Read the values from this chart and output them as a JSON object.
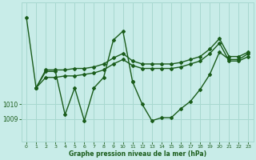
{
  "bg_color": "#c8ece8",
  "grid_color": "#a8d8d0",
  "line_color": "#1a5c1a",
  "marker_color": "#1a5c1a",
  "xlabel": "Graphe pression niveau de la mer (hPa)",
  "xlabel_color": "#1a5c1a",
  "tick_color": "#1a5c1a",
  "xlim": [
    -0.5,
    23.5
  ],
  "ylim": [
    1007.5,
    1016.8
  ],
  "yticks": [
    1009,
    1010
  ],
  "sA_x": [
    0,
    1,
    2,
    3,
    4,
    5,
    6,
    7,
    8,
    9,
    10,
    11
  ],
  "sA_y": [
    1015.8,
    1011.1,
    1012.2,
    1012.2,
    1009.3,
    1011.1,
    1008.9,
    1011.1,
    1011.8,
    1014.3,
    1014.9,
    1011.5
  ],
  "sB_x": [
    1,
    2,
    3,
    4,
    5,
    6,
    7,
    8,
    9,
    10,
    11,
    12,
    13,
    14,
    15,
    16,
    17,
    18,
    19,
    20,
    21,
    22,
    23
  ],
  "sB_y": [
    1011.1,
    1012.3,
    1012.3,
    1012.3,
    1012.4,
    1012.4,
    1012.5,
    1012.7,
    1013.1,
    1013.4,
    1012.9,
    1012.7,
    1012.7,
    1012.7,
    1012.7,
    1012.8,
    1013.0,
    1013.2,
    1013.7,
    1014.4,
    1013.2,
    1013.2,
    1013.5
  ],
  "sC_x": [
    1,
    2,
    3,
    4,
    5,
    6,
    7,
    8,
    9,
    10,
    11,
    12,
    13,
    14,
    15,
    16,
    17,
    18,
    19,
    20,
    21,
    22,
    23
  ],
  "sC_y": [
    1011.1,
    1011.8,
    1011.8,
    1011.9,
    1011.9,
    1012.0,
    1012.1,
    1012.3,
    1012.7,
    1013.0,
    1012.6,
    1012.4,
    1012.4,
    1012.4,
    1012.4,
    1012.5,
    1012.7,
    1012.9,
    1013.4,
    1014.1,
    1012.9,
    1012.9,
    1013.2
  ],
  "sD_x": [
    11,
    12,
    13,
    14,
    15,
    16,
    17,
    18,
    19,
    20,
    21,
    22,
    23
  ],
  "sD_y": [
    1011.5,
    1010.0,
    1008.9,
    1009.1,
    1009.1,
    1009.7,
    1010.2,
    1011.0,
    1012.0,
    1013.5,
    1013.0,
    1013.0,
    1013.4
  ]
}
